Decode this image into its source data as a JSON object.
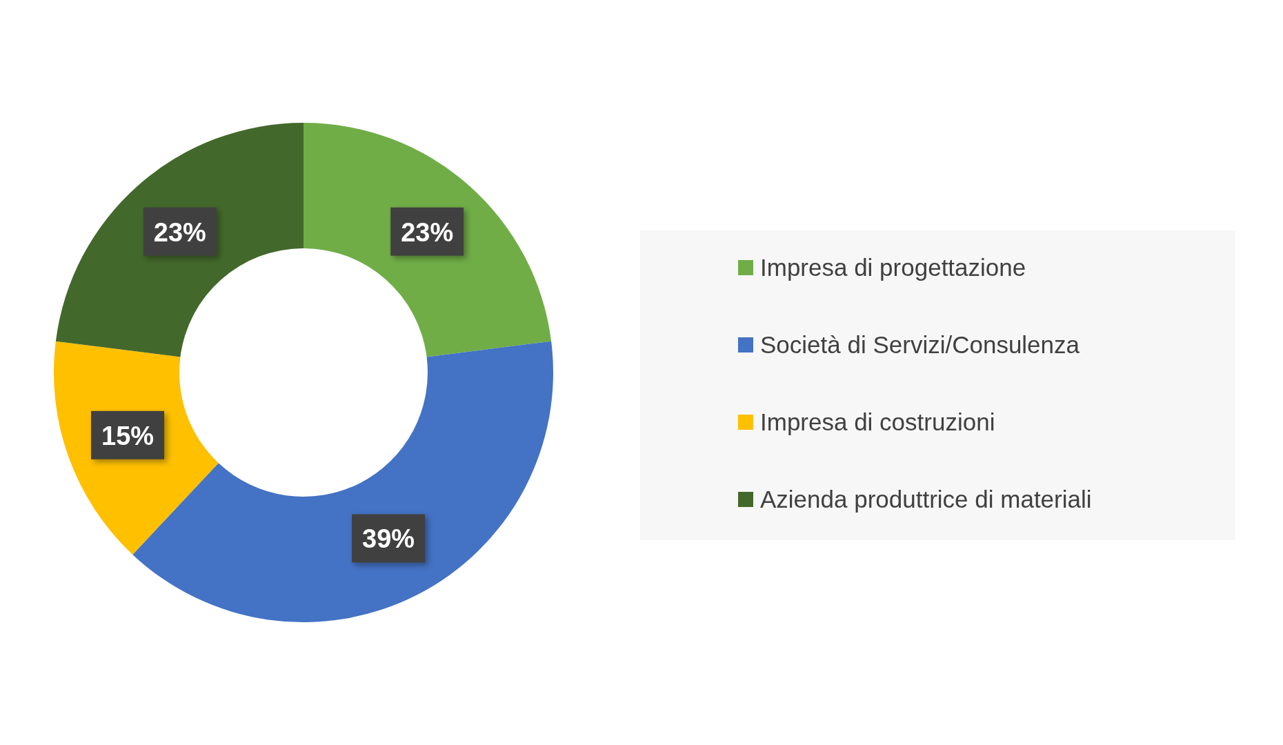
{
  "chart_data": {
    "type": "donut",
    "categories": [
      "Impresa di progettazione",
      "Società di Servizi/Consulenza",
      "Impresa di costruzioni",
      "Azienda produttrice di materiali"
    ],
    "values": [
      23,
      39,
      15,
      23
    ],
    "colors": [
      "#70ad47",
      "#4472c4",
      "#ffc000",
      "#43682b"
    ],
    "value_labels": [
      "23%",
      "39%",
      "15%",
      "23%"
    ],
    "legend": "right"
  }
}
